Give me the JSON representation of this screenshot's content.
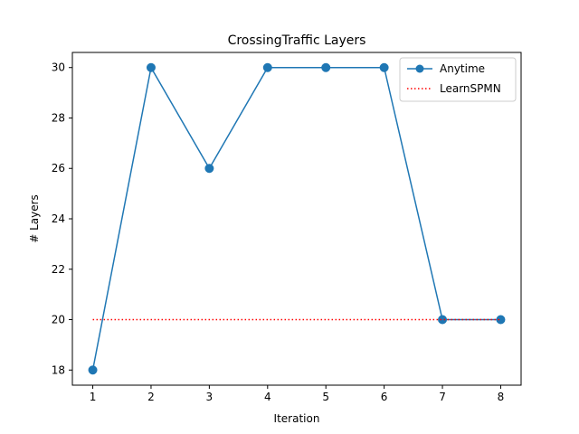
{
  "chart_data": {
    "type": "line",
    "title": "CrossingTraffic Layers",
    "xlabel": "Iteration",
    "ylabel": "# Layers",
    "x": [
      1,
      2,
      3,
      4,
      5,
      6,
      7,
      8
    ],
    "xlim": [
      0.65,
      8.35
    ],
    "ylim": [
      17.4,
      30.6
    ],
    "xticks": [
      1,
      2,
      3,
      4,
      5,
      6,
      7,
      8
    ],
    "yticks": [
      18,
      20,
      22,
      24,
      26,
      28,
      30
    ],
    "grid": false,
    "legend_position": "top-right",
    "series": [
      {
        "name": "Anytime",
        "values": [
          18,
          30,
          26,
          30,
          30,
          30,
          20,
          20
        ],
        "color": "#1f77b4",
        "style": "solid",
        "marker": "circle"
      },
      {
        "name": "LearnSPMN",
        "values": [
          20,
          20,
          20,
          20,
          20,
          20,
          20,
          20
        ],
        "color": "#ff0000",
        "style": "dotted",
        "marker": "none"
      }
    ]
  }
}
